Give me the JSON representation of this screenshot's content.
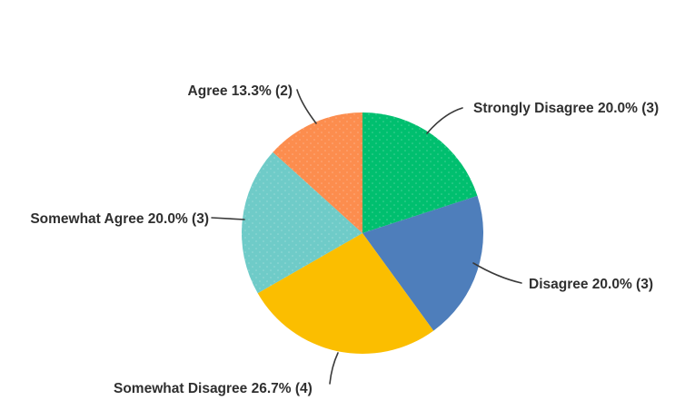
{
  "chart_data": {
    "type": "pie",
    "title": "",
    "legend_position": "none",
    "label_style": "callout",
    "start_angle_deg": 0,
    "direction": "clockwise",
    "slices": [
      {
        "label": "Strongly Disagree",
        "pct": 20.0,
        "count": 3,
        "text": "Strongly Disagree 20.0% (3)",
        "color": "#00BF6F",
        "pattern": "dots"
      },
      {
        "label": "Disagree",
        "pct": 20.0,
        "count": 3,
        "text": "Disagree 20.0% (3)",
        "color": "#4E7EBB",
        "pattern": "solid"
      },
      {
        "label": "Somewhat Disagree",
        "pct": 26.7,
        "count": 4,
        "text": "Somewhat Disagree 26.7% (4)",
        "color": "#FBBE00",
        "pattern": "solid"
      },
      {
        "label": "Somewhat Agree",
        "pct": 20.0,
        "count": 3,
        "text": "Somewhat Agree 20.0% (3)",
        "color": "#6FCBC8",
        "pattern": "dots"
      },
      {
        "label": "Agree",
        "pct": 13.3,
        "count": 2,
        "text": "Agree 13.3% (2)",
        "color": "#FC8D4E",
        "pattern": "dots"
      }
    ]
  },
  "style": {
    "background": "#ffffff",
    "label_color": "#2f2f2f",
    "leader_color": "#3a3a3a"
  }
}
